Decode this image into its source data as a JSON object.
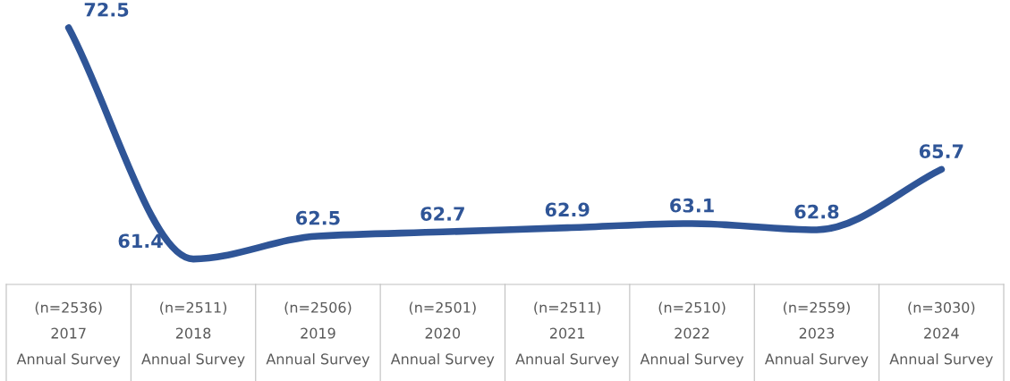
{
  "chart_data": {
    "type": "line",
    "categories": [
      "(n=2536)\n2017\nAnnual Survey",
      "(n=2511)\n2018\nAnnual Survey",
      "(n=2506)\n2019\nAnnual Survey",
      "(n=2501)\n2020\nAnnual Survey",
      "(n=2511)\n2021\nAnnual Survey",
      "(n=2510)\n2022\nAnnual Survey",
      "(n=2559)\n2023\nAnnual Survey",
      "(n=3030)\n2024\nAnnual Survey"
    ],
    "series": [
      {
        "color": "#2f5597",
        "values": [
          72.5,
          61.4,
          62.5,
          62.7,
          62.9,
          63.1,
          62.8,
          65.7
        ]
      }
    ],
    "data_labels": true,
    "grid": false,
    "legend": false,
    "marker": "none",
    "line_style": "solid"
  }
}
